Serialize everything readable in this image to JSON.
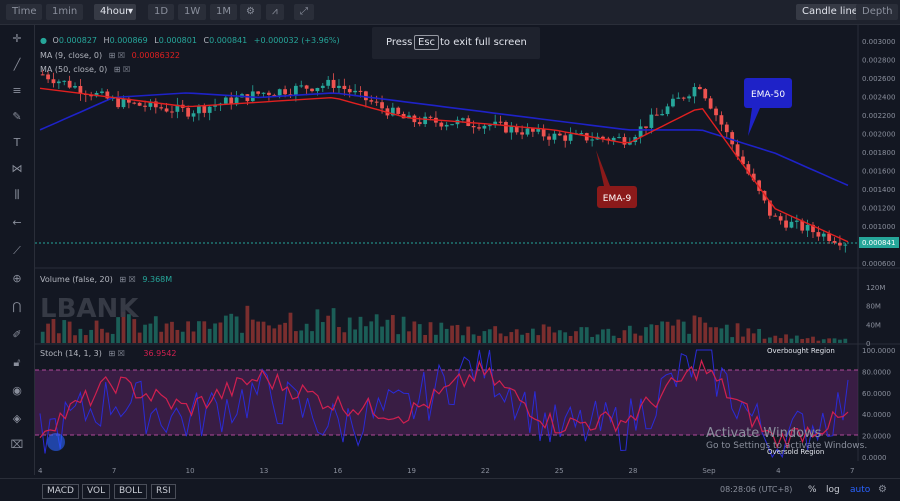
{
  "toolbar": {
    "buttons": [
      "Time",
      "1min",
      "4hour",
      "1D",
      "1W",
      "1M"
    ],
    "right_buttons": [
      "Candle line",
      "Depth"
    ]
  },
  "fullscreen_notice": {
    "press": "Press",
    "key": "Esc",
    "rest": "to exit full screen"
  },
  "legend": {
    "ohlc": {
      "o_label": "O",
      "o": "0.000827",
      "h_label": "H",
      "h": "0.000869",
      "l_label": "L",
      "l": "0.000801",
      "c_label": "C",
      "c": "0.000841",
      "change": "+0.000032 (+3.96%)"
    },
    "ma1": {
      "label": "MA (9, close, 0)",
      "value": "0.00086322"
    },
    "ma2": {
      "label": "MA (50, close, 0)",
      "value": ""
    },
    "volume": {
      "label": "Volume (false, 20)",
      "value": "9.368M"
    },
    "stoch": {
      "label": "Stoch (14, 1, 3)",
      "k_value": "",
      "d_value": "36.9542"
    }
  },
  "annotations": {
    "ema50": "EMA-50",
    "ema9": "EMA-9",
    "overbought": "Overbought Region",
    "oversold": "Oversold Region",
    "brand": "LBANK"
  },
  "price_axis": [
    "0.003000",
    "0.002800",
    "0.002600",
    "0.002400",
    "0.002200",
    "0.002000",
    "0.001800",
    "0.001600",
    "0.001400",
    "0.001200",
    "0.001000",
    "0.000800",
    "0.000600"
  ],
  "last_price_tag": "0.000841",
  "volume_axis": [
    "120M",
    "80M",
    "40M",
    "0"
  ],
  "stoch_axis": [
    "100.0000",
    "80.0000",
    "60.0000",
    "40.0000",
    "20.0000",
    "0.0000"
  ],
  "x_axis": [
    "4",
    "7",
    "10",
    "13",
    "16",
    "19",
    "22",
    "25",
    "28",
    "Sep",
    "4",
    "7"
  ],
  "bottom": {
    "indicators": [
      "MACD",
      "VOL",
      "BOLL",
      "RSI"
    ],
    "time": "08:28:06 (UTC+8)",
    "options": [
      "%",
      "log",
      "auto"
    ]
  },
  "watermark": {
    "line1": "Activate Windows",
    "line2": "Go to Settings to activate Windows."
  },
  "colors": {
    "up": "#26a69a",
    "down": "#ef5350",
    "ema9": "#e02020",
    "ema50": "#1e22c8",
    "stoch_k": "#2b2bd6",
    "stoch_d": "#d02050",
    "band": "#5a2360"
  },
  "chart_data": [
    {
      "type": "line",
      "title": "",
      "x": [
        "4",
        "7",
        "10",
        "13",
        "16",
        "19",
        "22",
        "25",
        "28",
        "Sep",
        "4",
        "7"
      ],
      "series": [
        {
          "name": "EMA-9",
          "values": [
            0.0025,
            0.0024,
            0.0023,
            0.00235,
            0.0024,
            0.00218,
            0.00212,
            0.00205,
            0.0019,
            0.0023,
            0.0012,
            0.00084
          ]
        },
        {
          "name": "EMA-50",
          "values": [
            0.00205,
            0.0024,
            0.00245,
            0.0024,
            0.00245,
            0.00235,
            0.00225,
            0.00215,
            0.00205,
            0.00205,
            0.0018,
            0.00145
          ]
        },
        {
          "name": "",
          "values": [
            0.00265,
            0.00235,
            0.00225,
            0.00245,
            0.00255,
            0.00215,
            0.00212,
            0.00198,
            0.00195,
            0.00255,
            0.0011,
            0.00084
          ]
        }
      ],
      "ylim": [
        0.0006,
        0.003
      ]
    },
    {
      "type": "bar",
      "title": "",
      "x": [
        "4",
        "7",
        "10",
        "13",
        "16",
        "19",
        "22",
        "25",
        "28",
        "Sep",
        "4",
        "7"
      ],
      "values": [
        35,
        45,
        30,
        55,
        50,
        35,
        28,
        25,
        25,
        40,
        15,
        9.368
      ],
      "ylim": [
        0,
        120
      ]
    },
    {
      "type": "line",
      "title": "",
      "x": [
        "4",
        "7",
        "10",
        "13",
        "16",
        "19",
        "22",
        "25",
        "28",
        "Sep",
        "4",
        "7"
      ],
      "series": [
        {
          "name": "",
          "values": [
            20,
            55,
            35,
            60,
            30,
            45,
            90,
            25,
            30,
            95,
            10,
            50
          ]
        },
        {
          "name": "",
          "values": [
            25,
            70,
            45,
            75,
            50,
            40,
            80,
            30,
            35,
            85,
            15,
            36.9542
          ]
        }
      ],
      "bands": [
        20,
        80
      ],
      "ylim": [
        0,
        100
      ]
    }
  ]
}
